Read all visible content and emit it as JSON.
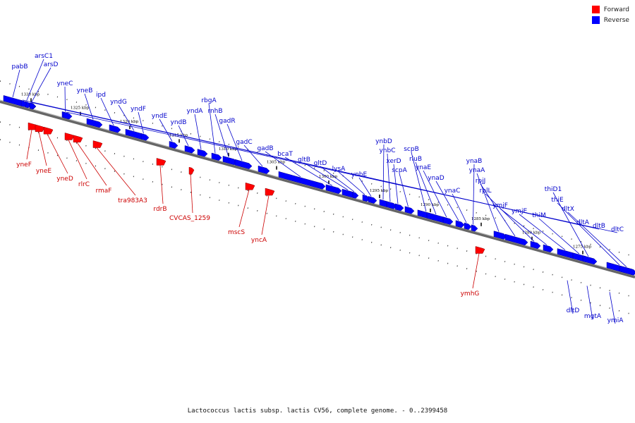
{
  "legend": {
    "forward_label": "Forward",
    "reverse_label": "Reverse",
    "forward_color": "#ff0000",
    "reverse_color": "#0000ff"
  },
  "caption": "Lactococcus lactis subsp. lactis CV56, complete genome. - 0..2399458",
  "ticks": [
    "1330 kbp",
    "1325 kbp",
    "1320 kbp",
    "1315 kbp",
    "1310 kbp",
    "1305 kbp",
    "1300 kbp",
    "1295 kbp",
    "1290 kbp",
    "1285 kbp",
    "1280 kbp",
    "1275 kbp"
  ],
  "forward_genes": [
    "yneF",
    "yneE",
    "yneD",
    "rlrC",
    "rmaF",
    "tra983A3",
    "rdrB",
    "CVCAS_1259",
    "mscS",
    "yncA",
    "ymhG"
  ],
  "reverse_genes": [
    "pabB",
    "arsC1",
    "arsD",
    "yneC",
    "yneB",
    "ipd",
    "yndG",
    "yndF",
    "yndE",
    "yndB",
    "yndA",
    "rbgA",
    "rnhB",
    "gadR",
    "gadC",
    "gadB",
    "bcaT",
    "gltB",
    "gltD",
    "lysA",
    "ynbE",
    "ynbD",
    "ynbC",
    "xerD",
    "scpA",
    "scpB",
    "rluB",
    "ynaE",
    "ynaD",
    "ynaC",
    "ynaB",
    "ynaA",
    "rpjJ",
    "rplL",
    "ymjF",
    "ymjE",
    "thiM",
    "thiD1",
    "thiE",
    "dltX",
    "dltA",
    "dltB",
    "dltC",
    "dltD",
    "mgtA",
    "ymiA"
  ]
}
